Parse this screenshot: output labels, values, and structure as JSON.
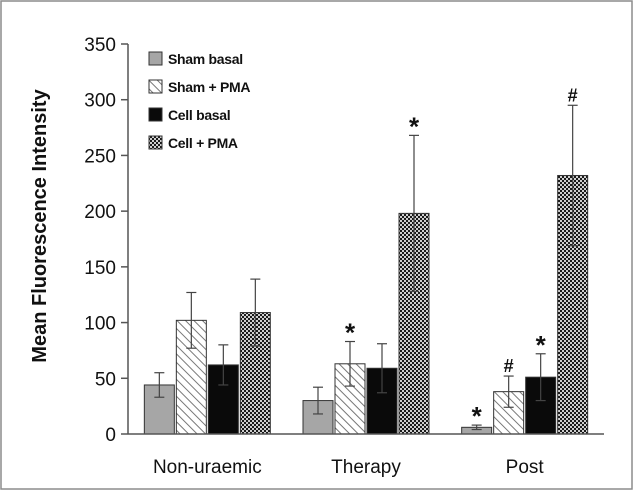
{
  "chart_data": {
    "type": "bar",
    "title": "",
    "xlabel": "",
    "ylabel": "Mean Fluorescence Intensity",
    "ylim": [
      0,
      350
    ],
    "yticks": [
      0,
      50,
      100,
      150,
      200,
      250,
      300,
      350
    ],
    "grid": false,
    "legend_position": "top-left",
    "categories": [
      "Non-uraemic",
      "Therapy",
      "Post"
    ],
    "series": [
      {
        "name": "Sham basal",
        "pattern": "solid-gray",
        "color": "#a6a6a6",
        "values": [
          44,
          30,
          6
        ],
        "errors": [
          11,
          12,
          2
        ],
        "annotations": [
          "",
          "",
          "*"
        ]
      },
      {
        "name": "Sham + PMA",
        "pattern": "diagonal-hatch",
        "color": "#ffffff",
        "values": [
          102,
          63,
          38
        ],
        "errors": [
          25,
          20,
          14
        ],
        "annotations": [
          "",
          "*",
          "#"
        ]
      },
      {
        "name": "Cell basal",
        "pattern": "solid-black",
        "color": "#0a0a0a",
        "values": [
          62,
          59,
          51
        ],
        "errors": [
          18,
          22,
          21
        ],
        "annotations": [
          "",
          "",
          "*"
        ]
      },
      {
        "name": "Cell + PMA",
        "pattern": "checkered",
        "color": "#3a3a3a",
        "values": [
          109,
          198,
          232
        ],
        "errors": [
          30,
          70,
          63
        ],
        "annotations": [
          "",
          "*",
          "#"
        ]
      }
    ]
  }
}
